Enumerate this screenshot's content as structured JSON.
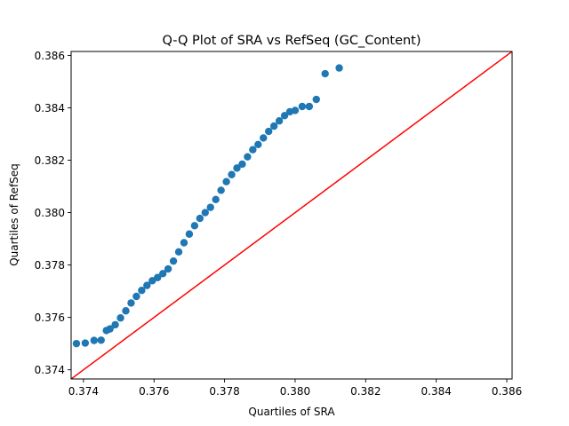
{
  "chart_data": {
    "type": "scatter",
    "title": "Q-Q Plot of SRA vs RefSeq (GC_Content)",
    "xlabel": "Quartiles of SRA",
    "ylabel": "Quartiles of RefSeq",
    "xlim": [
      0.37365,
      0.38615
    ],
    "ylim": [
      0.37365,
      0.38615
    ],
    "xticks": [
      0.374,
      0.376,
      0.378,
      0.38,
      0.382,
      0.384,
      0.386
    ],
    "yticks": [
      0.374,
      0.376,
      0.378,
      0.38,
      0.382,
      0.384,
      0.386
    ],
    "tick_labels": [
      "0.374",
      "0.376",
      "0.378",
      "0.380",
      "0.382",
      "0.384",
      "0.386"
    ],
    "grid": false,
    "reference_line": {
      "x": [
        0.37365,
        0.38615
      ],
      "y": [
        0.37365,
        0.38615
      ],
      "color": "#ff0000"
    },
    "marker_color": "#1f77b4",
    "line_color": "#ff0000",
    "series": [
      {
        "x": [
          0.3738,
          0.37405,
          0.3743,
          0.3745,
          0.37465,
          0.37475,
          0.3749,
          0.37505,
          0.3752,
          0.37535,
          0.3755,
          0.37565,
          0.3758,
          0.37595,
          0.3761,
          0.37625,
          0.3764,
          0.37655,
          0.3767,
          0.37685,
          0.377,
          0.37715,
          0.3773,
          0.37745,
          0.3776,
          0.37775,
          0.3779,
          0.37805,
          0.3782,
          0.37835,
          0.3785,
          0.37865,
          0.3788,
          0.37895,
          0.3791,
          0.37925,
          0.3794,
          0.37955,
          0.3797,
          0.37985,
          0.38,
          0.3802,
          0.3804,
          0.3806,
          0.38085,
          0.38125
        ],
        "y": [
          0.375,
          0.37502,
          0.37512,
          0.37513,
          0.3755,
          0.37556,
          0.37572,
          0.37598,
          0.37625,
          0.37655,
          0.3768,
          0.37703,
          0.37722,
          0.3774,
          0.37752,
          0.37767,
          0.37785,
          0.37815,
          0.3785,
          0.37885,
          0.37918,
          0.3795,
          0.37978,
          0.38,
          0.3802,
          0.3805,
          0.38085,
          0.38118,
          0.38145,
          0.3817,
          0.38185,
          0.38213,
          0.3824,
          0.3826,
          0.38285,
          0.3831,
          0.3833,
          0.3835,
          0.3837,
          0.38385,
          0.3839,
          0.38405,
          0.38405,
          0.38432,
          0.3853,
          0.38552
        ]
      }
    ]
  }
}
